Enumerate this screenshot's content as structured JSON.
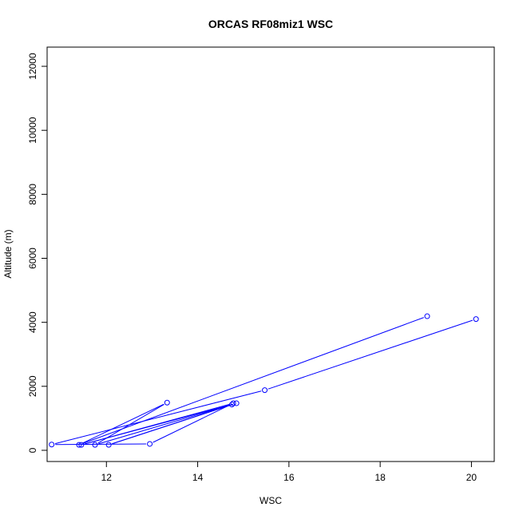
{
  "chart_data": {
    "type": "line",
    "title": "ORCAS RF08miz1 WSC",
    "xlabel": "WSC",
    "ylabel": "Altitude (m)",
    "xlim": [
      10.7,
      20.5
    ],
    "ylim": [
      -350,
      12600
    ],
    "x_ticks": [
      12,
      14,
      16,
      18,
      20
    ],
    "y_ticks": [
      0,
      2000,
      4000,
      6000,
      8000,
      10000,
      12000
    ],
    "grid": false,
    "legend": "none",
    "series": [
      {
        "color": "#0000ff",
        "markers": "open-circle",
        "points": [
          {
            "x": 20.1,
            "y": 4100
          },
          {
            "x": 15.47,
            "y": 1880
          },
          {
            "x": 10.8,
            "y": 180
          },
          {
            "x": 12.95,
            "y": 200
          },
          {
            "x": 14.78,
            "y": 1470
          },
          {
            "x": 11.45,
            "y": 170
          },
          {
            "x": 14.85,
            "y": 1470
          },
          {
            "x": 12.05,
            "y": 170
          },
          {
            "x": 14.75,
            "y": 1430
          },
          {
            "x": 11.75,
            "y": 170
          },
          {
            "x": 13.33,
            "y": 1490
          },
          {
            "x": 11.4,
            "y": 170
          },
          {
            "x": 19.03,
            "y": 4190
          }
        ]
      }
    ]
  }
}
